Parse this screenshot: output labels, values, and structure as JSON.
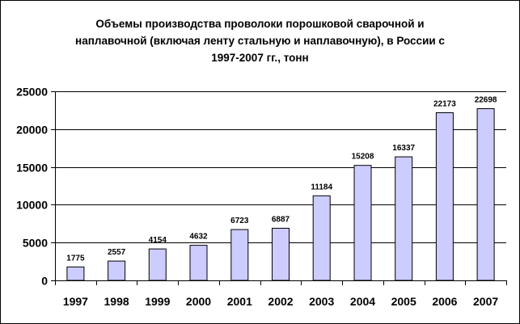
{
  "chart_data": {
    "type": "bar",
    "title_lines": [
      "Объемы производства проволоки порошковой сварочной и",
      "наплавочной (включая ленту стальную и наплавочную), в России с",
      "1997-2007 гг., тонн"
    ],
    "categories": [
      "1997",
      "1998",
      "1999",
      "2000",
      "2001",
      "2002",
      "2003",
      "2004",
      "2005",
      "2006",
      "2007"
    ],
    "values": [
      1775,
      2557,
      4154,
      4632,
      6723,
      6887,
      11184,
      15208,
      16337,
      22173,
      22698
    ],
    "data_labels": [
      "1775",
      "2557",
      "4154",
      "4632",
      "6723",
      "6887",
      "11184",
      "15208",
      "16337",
      "22173",
      "22698"
    ],
    "ylim": [
      0,
      25000
    ],
    "yticks": [
      0,
      5000,
      10000,
      15000,
      20000,
      25000
    ],
    "ytick_labels": [
      "0",
      "5000",
      "10000",
      "15000",
      "20000",
      "25000"
    ],
    "grid": true,
    "legend": "none",
    "colors": {
      "bar_fill": "#ccccff",
      "bar_stroke": "#000000",
      "grid": "#000000"
    }
  }
}
